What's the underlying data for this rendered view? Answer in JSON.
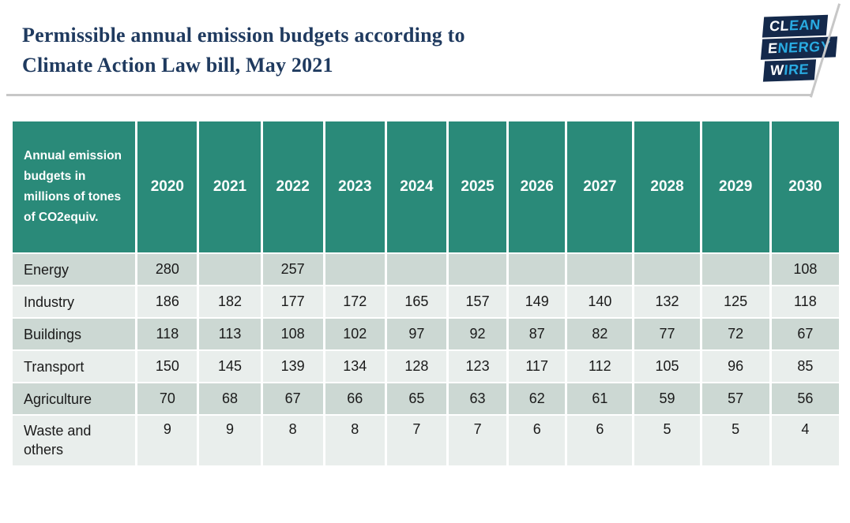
{
  "slide": {
    "title_line1": "Permissible annual emission budgets according to",
    "title_line2": "Climate Action Law bill, May 2021"
  },
  "logo": {
    "alt": "Clean Energy Wire",
    "lines": [
      {
        "first": "CL",
        "rest": "EAN"
      },
      {
        "first": "E",
        "rest": "NERGY"
      },
      {
        "first": "W",
        "rest": "IRE"
      }
    ]
  },
  "chart_data": {
    "type": "table",
    "title": "Permissible annual emission budgets according to Climate Action Law bill, May 2021",
    "header_label": "Annual emission budgets in millions of tones of CO2equiv.",
    "columns": [
      "2020",
      "2021",
      "2022",
      "2023",
      "2024",
      "2025",
      "2026",
      "2027",
      "2028",
      "2029",
      "2030"
    ],
    "rows": [
      {
        "label": "Energy",
        "values": [
          "280",
          "",
          "257",
          "",
          "",
          "",
          "",
          "",
          "",
          "",
          "108"
        ]
      },
      {
        "label": "Industry",
        "values": [
          "186",
          "182",
          "177",
          "172",
          "165",
          "157",
          "149",
          "140",
          "132",
          "125",
          "118"
        ]
      },
      {
        "label": "Buildings",
        "values": [
          "118",
          "113",
          "108",
          "102",
          "97",
          "92",
          "87",
          "82",
          "77",
          "72",
          "67"
        ]
      },
      {
        "label": "Transport",
        "values": [
          "150",
          "145",
          "139",
          "134",
          "128",
          "123",
          "117",
          "112",
          "105",
          "96",
          "85"
        ]
      },
      {
        "label": "Agriculture",
        "values": [
          "70",
          "68",
          "67",
          "66",
          "65",
          "63",
          "62",
          "61",
          "59",
          "57",
          "56"
        ]
      },
      {
        "label": "Waste and others",
        "values": [
          "9",
          "9",
          "8",
          "8",
          "7",
          "7",
          "6",
          "6",
          "5",
          "5",
          "4"
        ]
      }
    ],
    "grid": "white cell separators",
    "legend_position": "none"
  },
  "colors": {
    "header-teal": "#2a8a79",
    "row-dark": "#ccd8d3",
    "row-light": "#e9eeec",
    "title-navy": "#1f3a5f",
    "logo-navy": "#14294b",
    "logo-blue": "#29abe2",
    "divider-gray": "#c7c7c7",
    "cell-text": "#1a1a1a"
  }
}
